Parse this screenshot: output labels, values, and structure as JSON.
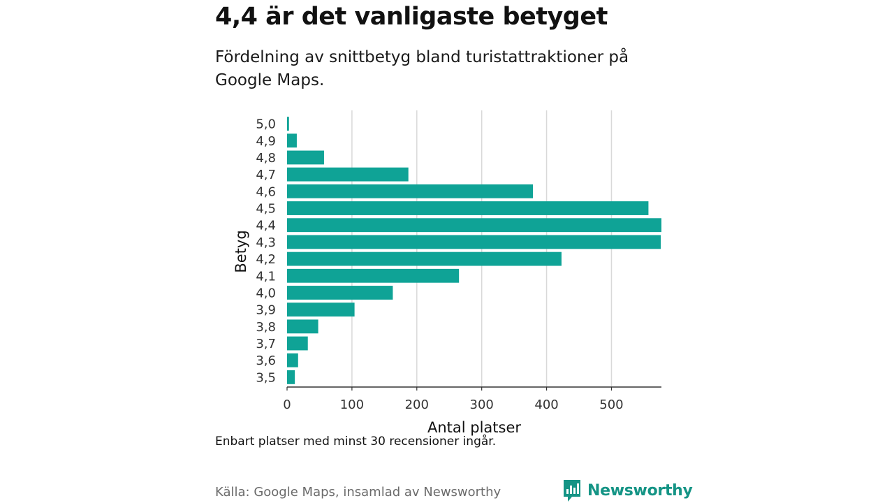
{
  "title": "4,4 är det vanligaste betyget",
  "subtitle": "Fördelning av snittbetyg bland turistattraktioner på Google Maps.",
  "note": "Enbart platser med minst 30 recensioner ingår.",
  "source": "Källa: Google Maps, insamlad av Newsworthy",
  "brand": {
    "name": "Newsworthy",
    "icon": "newsworthy-logo-icon"
  },
  "colors": {
    "bar": "#0fa396",
    "grid": "#d9d9d9",
    "axis": "#333333",
    "brand": "#149485"
  },
  "chart_data": {
    "type": "bar",
    "orientation": "horizontal",
    "xlabel": "Antal platser",
    "ylabel": "Betyg",
    "xlim": [
      0,
      577
    ],
    "xticks": [
      0,
      100,
      200,
      300,
      400,
      500
    ],
    "grid": "vertical",
    "categories": [
      "5,0",
      "4,9",
      "4,8",
      "4,7",
      "4,6",
      "4,5",
      "4,4",
      "4,3",
      "4,2",
      "4,1",
      "4,0",
      "3,9",
      "3,8",
      "3,7",
      "3,6",
      "3,5"
    ],
    "values": [
      3,
      15,
      57,
      187,
      379,
      557,
      577,
      576,
      423,
      265,
      163,
      104,
      48,
      32,
      17,
      12
    ]
  }
}
